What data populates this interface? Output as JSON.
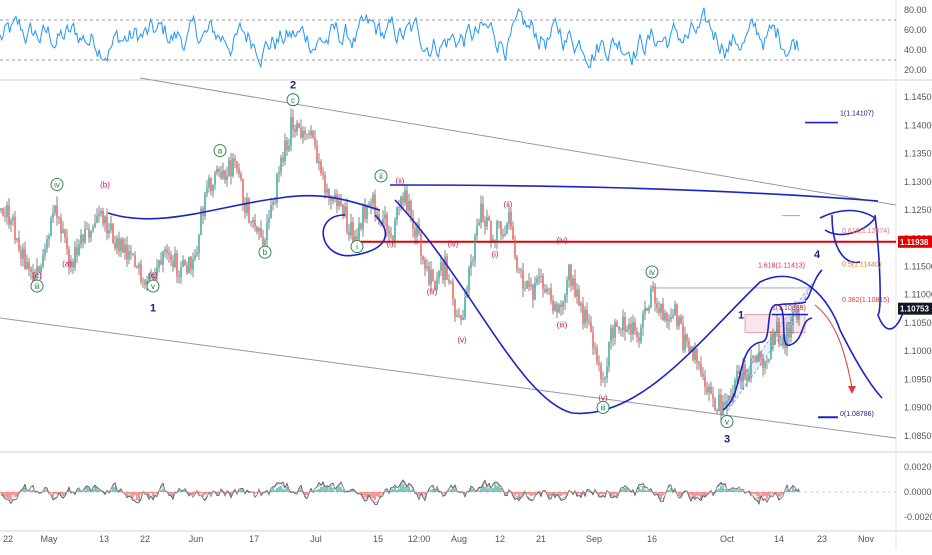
{
  "chart_data": [
    {
      "type": "line",
      "name": "rsi",
      "yticks": [
        20.0,
        40.0,
        60.0,
        80.0
      ],
      "ylim": [
        14,
        88
      ],
      "levels": [
        30,
        70
      ],
      "color": "#2196f3"
    },
    {
      "type": "candlestick",
      "name": "price",
      "yticks": [
        1.085,
        1.09,
        1.095,
        1.1,
        1.105,
        1.11,
        1.115,
        1.12,
        1.125,
        1.13,
        1.135,
        1.14,
        1.145
      ],
      "ylim": [
        1.0825,
        1.1475
      ],
      "xticks": [
        "22",
        "May",
        "13",
        "22",
        "Jun",
        "17",
        "Jul",
        "15",
        "12:00",
        "Aug",
        "12",
        "21",
        "Sep",
        "16",
        "Oct",
        "14",
        "23",
        "Nov"
      ],
      "path": [
        [
          0,
          1.125
        ],
        [
          10,
          1.124
        ],
        [
          20,
          1.118
        ],
        [
          35,
          1.112
        ],
        [
          45,
          1.119
        ],
        [
          55,
          1.125
        ],
        [
          70,
          1.115
        ],
        [
          85,
          1.12
        ],
        [
          100,
          1.124
        ],
        [
          110,
          1.121
        ],
        [
          125,
          1.117
        ],
        [
          140,
          1.114
        ],
        [
          155,
          1.113
        ],
        [
          165,
          1.12
        ],
        [
          180,
          1.114
        ],
        [
          195,
          1.117
        ],
        [
          205,
          1.128
        ],
        [
          220,
          1.131
        ],
        [
          235,
          1.133
        ],
        [
          245,
          1.126
        ],
        [
          265,
          1.12
        ],
        [
          280,
          1.132
        ],
        [
          293,
          1.141
        ],
        [
          305,
          1.138
        ],
        [
          315,
          1.137
        ],
        [
          325,
          1.128
        ],
        [
          340,
          1.126
        ],
        [
          355,
          1.12
        ],
        [
          370,
          1.128
        ],
        [
          380,
          1.124
        ],
        [
          392,
          1.12
        ],
        [
          402,
          1.128
        ],
        [
          415,
          1.122
        ],
        [
          432,
          1.112
        ],
        [
          445,
          1.115
        ],
        [
          460,
          1.104
        ],
        [
          468,
          1.112
        ],
        [
          480,
          1.125
        ],
        [
          492,
          1.121
        ],
        [
          500,
          1.122
        ],
        [
          510,
          1.123
        ],
        [
          518,
          1.115
        ],
        [
          530,
          1.11
        ],
        [
          545,
          1.112
        ],
        [
          560,
          1.106
        ],
        [
          568,
          1.115
        ],
        [
          580,
          1.108
        ],
        [
          592,
          1.103
        ],
        [
          602,
          1.093
        ],
        [
          612,
          1.104
        ],
        [
          625,
          1.105
        ],
        [
          638,
          1.102
        ],
        [
          652,
          1.111
        ],
        [
          662,
          1.106
        ],
        [
          675,
          1.107
        ],
        [
          685,
          1.101
        ],
        [
          700,
          1.098
        ],
        [
          712,
          1.092
        ],
        [
          725,
          1.089
        ],
        [
          735,
          1.095
        ],
        [
          745,
          1.096
        ],
        [
          755,
          1.1
        ],
        [
          765,
          1.097
        ],
        [
          775,
          1.104
        ],
        [
          785,
          1.102
        ],
        [
          795,
          1.106
        ],
        [
          800,
          1.1075
        ]
      ],
      "last_price": "1.10753",
      "level_price": "1.11938",
      "wave_labels": [
        {
          "t": "(c)",
          "c": "#c2185b",
          "x": 37,
          "y": 1.113
        },
        {
          "t": "iii",
          "c": "#1b7a3e",
          "x": 37,
          "y": 1.111,
          "circle": true
        },
        {
          "t": "iv",
          "c": "#1b7a3e",
          "x": 57,
          "y": 1.129,
          "circle": true
        },
        {
          "t": "(a)",
          "c": "#c2185b",
          "x": 67,
          "y": 1.115
        },
        {
          "t": "(b)",
          "c": "#c2185b",
          "x": 105,
          "y": 1.129
        },
        {
          "t": "(c)",
          "c": "#c2185b",
          "x": 153,
          "y": 1.113
        },
        {
          "t": "v",
          "c": "#1b7a3e",
          "x": 153,
          "y": 1.111,
          "circle": true
        },
        {
          "t": "1",
          "c": "#1a237e",
          "x": 153,
          "y": 1.107
        },
        {
          "t": "a",
          "c": "#1b7a3e",
          "x": 220,
          "y": 1.135,
          "circle": true
        },
        {
          "t": "b",
          "c": "#1b7a3e",
          "x": 265,
          "y": 1.117,
          "circle": true
        },
        {
          "t": "2",
          "c": "#1a237e",
          "x": 293,
          "y": 1.1465
        },
        {
          "t": "c",
          "c": "#1b7a3e",
          "x": 293,
          "y": 1.144,
          "circle": true
        },
        {
          "t": "i",
          "c": "#1b7a3e",
          "x": 357,
          "y": 1.118,
          "circle": true
        },
        {
          "t": "ii",
          "c": "#1b7a3e",
          "x": 381,
          "y": 1.1305,
          "circle": true
        },
        {
          "t": "(ii)",
          "c": "#c2185b",
          "x": 400,
          "y": 1.1297
        },
        {
          "t": "(i)",
          "c": "#c2185b",
          "x": 390,
          "y": 1.1185
        },
        {
          "t": "(iii)",
          "c": "#c2185b",
          "x": 432,
          "y": 1.11
        },
        {
          "t": "(iv)",
          "c": "#c2185b",
          "x": 453,
          "y": 1.1185
        },
        {
          "t": "(v)",
          "c": "#c2185b",
          "x": 462,
          "y": 1.1015
        },
        {
          "t": "(ii)",
          "c": "#c2185b",
          "x": 508,
          "y": 1.1255
        },
        {
          "t": "(i)",
          "c": "#c2185b",
          "x": 495,
          "y": 1.1167
        },
        {
          "t": "(iv)",
          "c": "#c2185b",
          "x": 562,
          "y": 1.1192
        },
        {
          "t": "(iii)",
          "c": "#c2185b",
          "x": 562,
          "y": 1.1042
        },
        {
          "t": "iv",
          "c": "#1b7a3e",
          "x": 652,
          "y": 1.1135,
          "circle": true
        },
        {
          "t": "(v)",
          "c": "#c2185b",
          "x": 603,
          "y": 1.0913
        },
        {
          "t": "iii",
          "c": "#1b7a3e",
          "x": 603,
          "y": 1.0895,
          "circle": true
        },
        {
          "t": "v",
          "c": "#1b7a3e",
          "x": 727,
          "y": 1.087,
          "circle": true
        },
        {
          "t": "3",
          "c": "#1a237e",
          "x": 727,
          "y": 1.0838
        },
        {
          "t": "1",
          "c": "#1a237e",
          "x": 741,
          "y": 1.1058
        },
        {
          "t": "4",
          "c": "#1a237e",
          "x": 817,
          "y": 1.1165
        }
      ],
      "fib_labels": [
        {
          "t": "1(1.14107)",
          "c": "#1a237e",
          "x": 840,
          "y": 1.1417
        },
        {
          "t": "0.618(1.12074)",
          "c": "#e57373",
          "x": 842,
          "y": 1.1209
        },
        {
          "t": "1.618(1.11413)",
          "c": "#e91e63",
          "x": 758,
          "y": 1.1148
        },
        {
          "t": "0.5(1.11440)",
          "c": "#f57c00",
          "x": 842,
          "y": 1.115
        },
        {
          "t": "0.382(1.10815)",
          "c": "#e53935",
          "x": 842,
          "y": 1.1087
        },
        {
          "t": "1(1.10639)",
          "c": "#d32f2f",
          "x": 772,
          "y": 1.1073
        },
        {
          "t": "0(1.08786)",
          "c": "#1a237e",
          "x": 840,
          "y": 1.0885
        }
      ]
    },
    {
      "type": "bar",
      "name": "momentum",
      "yticks": [
        "0.0020",
        "0.0000",
        "-0.0020"
      ],
      "ytick_values": [
        0.002,
        0.0,
        -0.002
      ],
      "ylim": [
        -0.0029,
        0.0029
      ]
    }
  ]
}
